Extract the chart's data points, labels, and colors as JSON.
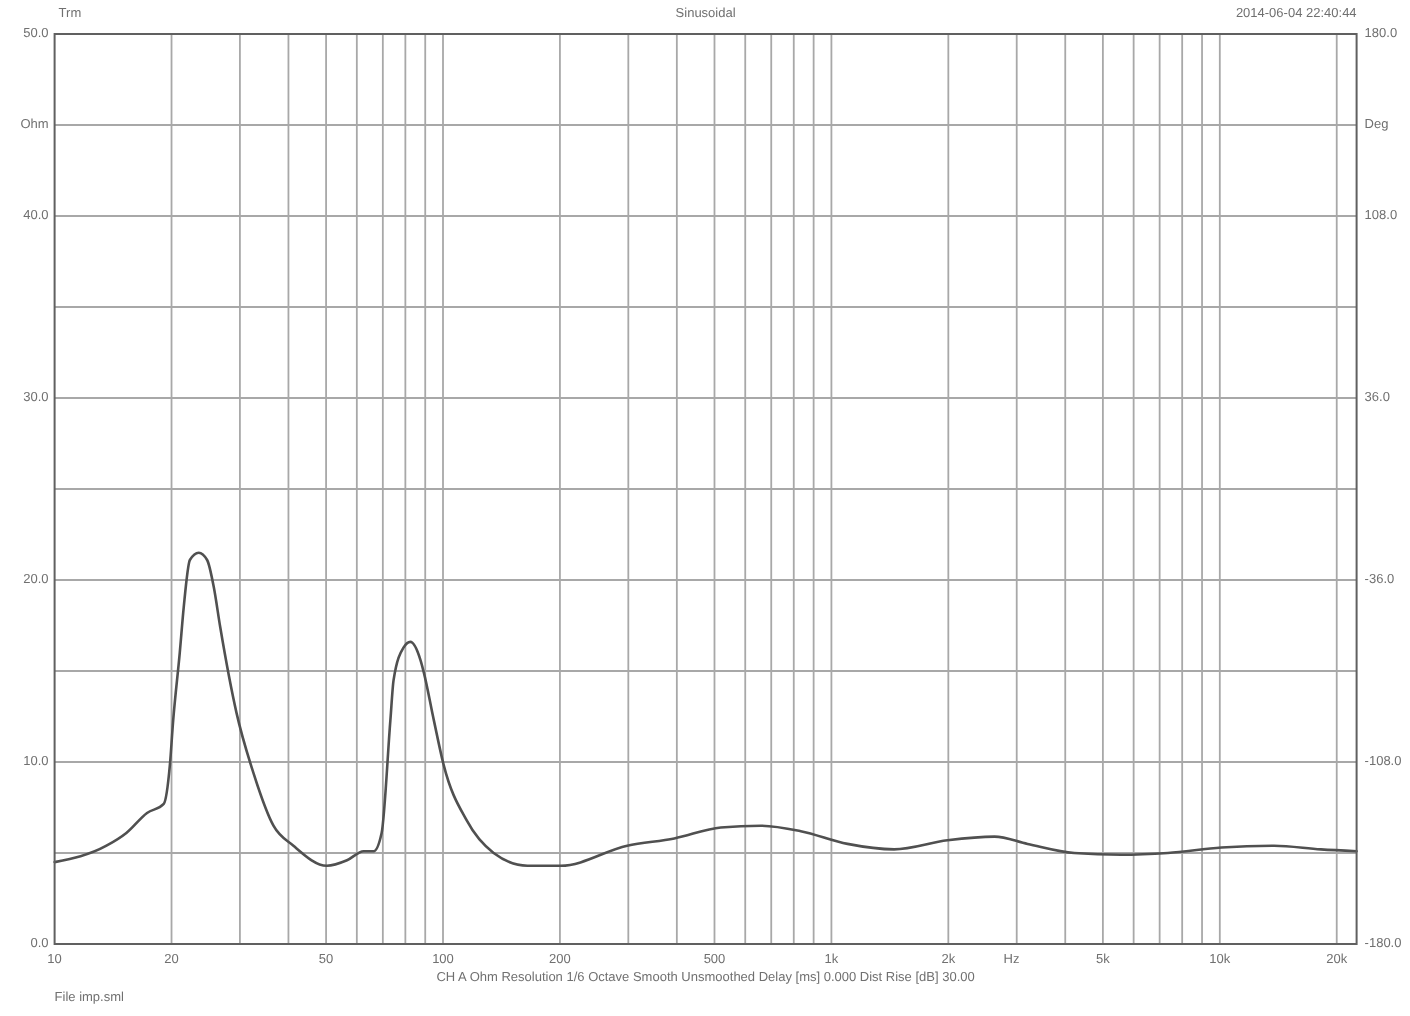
{
  "chart_data": {
    "type": "line",
    "title": "Sinusoidal",
    "xlabel": "Hz",
    "ylabel": "Ohm",
    "y2label": "Deg",
    "annotations": [
      "Trm",
      "2014-06-04 22:40:44",
      "CH A Ohm Resolution 1/6 Octave Smooth Unsmoothed Delay [ms] 0.000 Dist Rise [dB] 30.00",
      "File imp.sml"
    ],
    "x": [
      10,
      13.6,
      15.3,
      17.3,
      19.1,
      19.8,
      20.2,
      21.0,
      21.5,
      22.3,
      23.5,
      24.7,
      25.7,
      26.7,
      29.4,
      32.5,
      36.6,
      41.2,
      50.2,
      56.6,
      62.5,
      66.3,
      69.5,
      73.2,
      74.6,
      79.2,
      82.4,
      87.5,
      89.3,
      94.7,
      100.5,
      115,
      135,
      165,
      201,
      298,
      394,
      519,
      658,
      834,
      1100,
      1450,
      1990,
      2630,
      3200,
      4220,
      5570,
      7350,
      10100,
      13800,
      18200,
      22500
    ],
    "values": [
      4.5,
      5.4,
      6.1,
      7.2,
      7.7,
      9.8,
      12.3,
      16.0,
      18.5,
      21.1,
      21.5,
      21.1,
      19.6,
      17.4,
      12.7,
      9.4,
      6.5,
      5.4,
      4.3,
      4.6,
      5.1,
      5.1,
      6.1,
      12.3,
      14.5,
      16.3,
      16.6,
      15.6,
      14.9,
      12.3,
      9.8,
      6.8,
      5.0,
      4.3,
      4.3,
      5.4,
      5.8,
      6.4,
      6.5,
      6.2,
      5.5,
      5.2,
      5.7,
      5.9,
      5.5,
      5.0,
      4.9,
      5.0,
      5.3,
      5.4,
      5.2,
      5.1
    ],
    "color": "#505050",
    "log": "x",
    "grid": true,
    "xlim": [
      10,
      22500
    ],
    "xticks": [
      10,
      20,
      {
        "value": 30,
        "label": null
      },
      {
        "value": 40,
        "label": null
      },
      50,
      {
        "value": 60,
        "label": null
      },
      {
        "value": 70,
        "label": null
      },
      {
        "value": 80,
        "label": null
      },
      {
        "value": 90,
        "label": null
      },
      100,
      200,
      {
        "value": 300,
        "label": null
      },
      {
        "value": 400,
        "label": null
      },
      500,
      {
        "value": 600,
        "label": null
      },
      {
        "value": 700,
        "label": null
      },
      {
        "value": 800,
        "label": null
      },
      {
        "value": 900,
        "label": null
      },
      {
        "value": 1000,
        "label": "1k"
      },
      {
        "value": 2000,
        "label": "2k"
      },
      {
        "value": 3000,
        "label": null
      },
      {
        "value": 4000,
        "label": null
      },
      {
        "value": 5000,
        "label": "5k"
      },
      {
        "value": 6000,
        "label": null
      },
      {
        "value": 7000,
        "label": null
      },
      {
        "value": 8000,
        "label": null
      },
      {
        "value": 9000,
        "label": null
      },
      {
        "value": 10000,
        "label": "10k"
      },
      {
        "value": 20000,
        "label": "20k"
      }
    ],
    "ylim": [
      0,
      50
    ],
    "yticks": [
      {
        "value": 0,
        "label": "0.0"
      },
      {
        "value": 5,
        "label": null
      },
      {
        "value": 10,
        "label": "10.0"
      },
      {
        "value": 15,
        "label": null
      },
      {
        "value": 20,
        "label": "20.0"
      },
      {
        "value": 25,
        "label": null
      },
      {
        "value": 30,
        "label": "30.0"
      },
      {
        "value": 35,
        "label": null
      },
      {
        "value": 40,
        "label": "40.0"
      },
      {
        "value": 45,
        "label": null
      },
      {
        "value": 50,
        "label": "50.0"
      }
    ],
    "y2lim": [
      -180,
      180
    ],
    "y2ticks": [
      {
        "value": -180,
        "label": "-180.0"
      },
      {
        "value": -108,
        "label": "-108.0"
      },
      {
        "value": -36,
        "label": "-36.0"
      },
      {
        "value": 36,
        "label": "36.0"
      },
      {
        "value": 108,
        "label": "108.0"
      },
      {
        "value": 180,
        "label": "180.0"
      }
    ]
  }
}
